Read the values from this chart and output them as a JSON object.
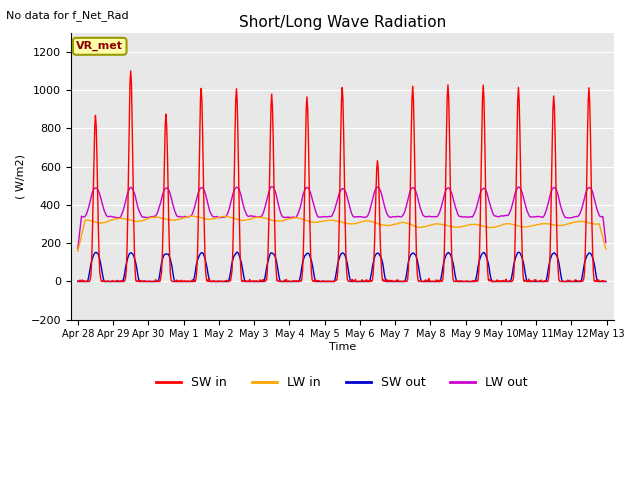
{
  "title": "Short/Long Wave Radiation",
  "xlabel": "Time",
  "ylabel": "( W/m2)",
  "ylim": [
    -200,
    1300
  ],
  "note": "No data for f_Net_Rad",
  "legend_label": "VR_met",
  "x_tick_labels": [
    "Apr 28",
    "Apr 29",
    "Apr 30",
    "May 1",
    "May 2",
    "May 3",
    "May 4",
    "May 5",
    "May 6",
    "May 7",
    "May 8",
    "May 9",
    "May 10",
    "May 11",
    "May 12",
    "May 13"
  ],
  "series_labels": [
    "SW in",
    "LW in",
    "SW out",
    "LW out"
  ],
  "series_colors": [
    "#ff0000",
    "#ffa500",
    "#0000cc",
    "#cc00cc"
  ],
  "background_color": "#ffffff",
  "plot_bg_color": "#e8e8e8",
  "grid_color": "#ffffff",
  "num_days": 15,
  "yticks": [
    -200,
    0,
    200,
    400,
    600,
    800,
    1000,
    1200
  ]
}
